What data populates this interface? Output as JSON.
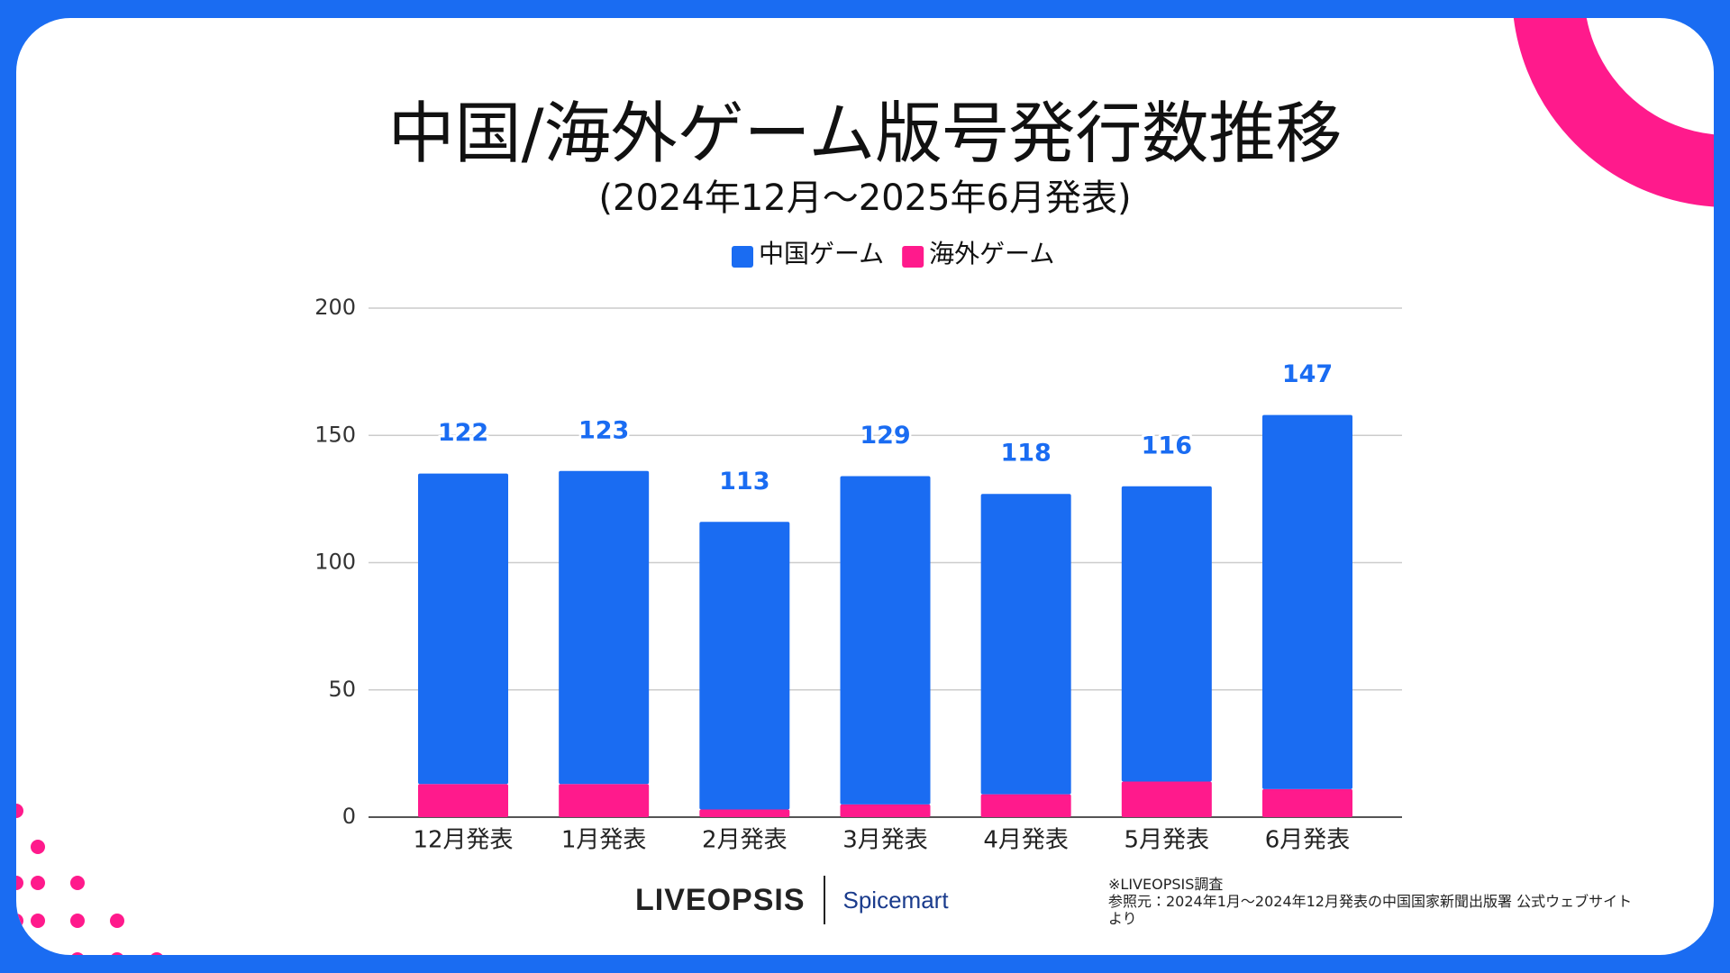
{
  "chart_data": {
    "type": "stacked_bar",
    "title": "中国/海外ゲーム版号発行数推移",
    "subtitle": "(2024年12月～2025年6月発表)",
    "categories": [
      "12月発表",
      "1月発表",
      "2月発表",
      "3月発表",
      "4月発表",
      "5月発表",
      "6月発表"
    ],
    "series": [
      {
        "name": "海外ゲーム",
        "color": "#ff1a8c",
        "values": [
          13,
          13,
          3,
          5,
          9,
          14,
          11
        ]
      },
      {
        "name": "中国ゲーム",
        "color": "#1a6cf2",
        "values": [
          122,
          123,
          113,
          129,
          118,
          116,
          147
        ]
      }
    ],
    "ylim": [
      0,
      200
    ],
    "yticks": [
      0,
      50,
      100,
      150,
      200
    ],
    "grid": true,
    "legend": "top"
  },
  "footer": {
    "logos": [
      "LIVEOPSIS",
      "Spicemart"
    ],
    "notes": [
      "※LIVEOPSIS調査",
      "参照元：2024年1月～2024年12月発表の中国国家新聞出版署 公式ウェブサイトより"
    ]
  }
}
